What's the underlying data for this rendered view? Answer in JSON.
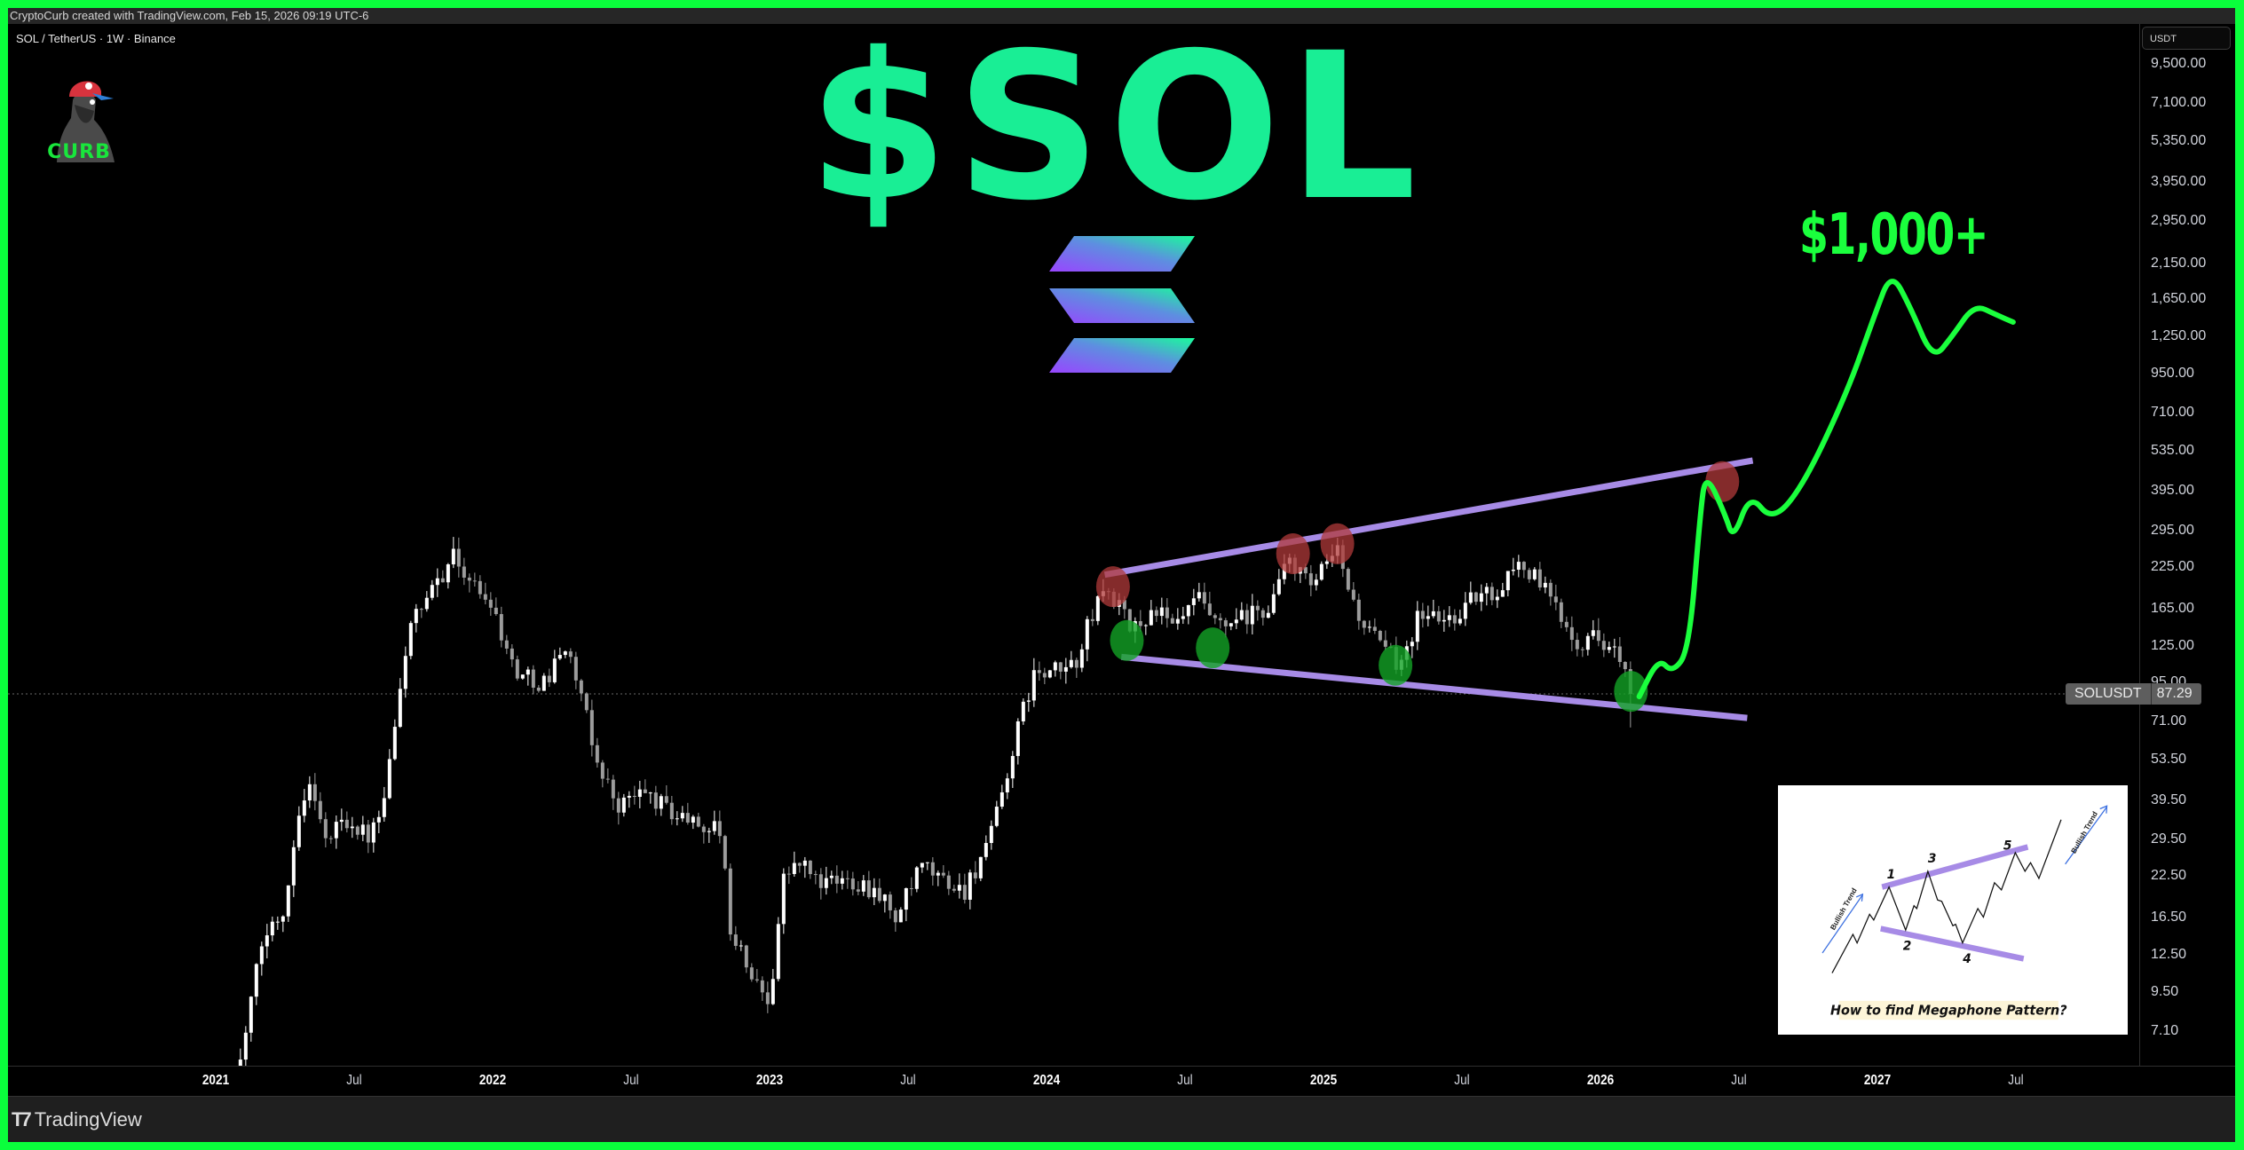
{
  "header": {
    "attribution": "CryptoCurb created with TradingView.com, Feb 15, 2026 09:19 UTC-6"
  },
  "symbol_info": "SOL / TetherUS · 1W · Binance",
  "logo": {
    "text": "CURB"
  },
  "title": "$SOL",
  "target_label": "$1,000+",
  "currency_button": "USDT",
  "price_tag": {
    "symbol": "SOLUSDT",
    "value": "87.29"
  },
  "footer": {
    "brand": "TradingView"
  },
  "inset": {
    "caption": "How to find Megaphone Pattern?",
    "wave_labels": [
      "1",
      "2",
      "3",
      "4",
      "5"
    ],
    "trend_label": "Bullish Trend"
  },
  "colors": {
    "border": "#0aff3c",
    "title": "#19ee95",
    "up_candle": "#ffffff",
    "down_candle": "#9c9c9c",
    "trendline": "#a78be6",
    "projection": "#1aff3d",
    "resistance_marker": "#b03a3a",
    "support_marker": "#13a326",
    "solana_gradient": [
      "#9945ff",
      "#19fb9b"
    ]
  },
  "chart_data": {
    "type": "candlestick",
    "interval": "1W",
    "y_scale": "log",
    "grid": false,
    "y_ticks": [
      "9,500.00",
      "7,100.00",
      "5,350.00",
      "3,950.00",
      "2,950.00",
      "2,150.00",
      "1,650.00",
      "1,250.00",
      "950.00",
      "710.00",
      "535.00",
      "395.00",
      "295.00",
      "225.00",
      "165.00",
      "125.00",
      "95.00",
      "71.00",
      "53.50",
      "39.50",
      "29.50",
      "22.50",
      "16.50",
      "12.50",
      "9.50",
      "7.10"
    ],
    "x_ticks": [
      {
        "label": "2021",
        "date": 2021.0,
        "year": true
      },
      {
        "label": "Jul",
        "date": 2021.5,
        "year": false
      },
      {
        "label": "2022",
        "date": 2022.0,
        "year": true
      },
      {
        "label": "Jul",
        "date": 2022.5,
        "year": false
      },
      {
        "label": "2023",
        "date": 2023.0,
        "year": true
      },
      {
        "label": "Jul",
        "date": 2023.5,
        "year": false
      },
      {
        "label": "2024",
        "date": 2024.0,
        "year": true
      },
      {
        "label": "Jul",
        "date": 2024.5,
        "year": false
      },
      {
        "label": "2025",
        "date": 2025.0,
        "year": true
      },
      {
        "label": "Jul",
        "date": 2025.5,
        "year": false
      },
      {
        "label": "2026",
        "date": 2026.0,
        "year": true
      },
      {
        "label": "Jul",
        "date": 2026.5,
        "year": false
      },
      {
        "label": "2027",
        "date": 2027.0,
        "year": true
      },
      {
        "label": "Jul",
        "date": 2027.5,
        "year": false
      }
    ],
    "current_price": 87.29,
    "approx_close_path": [
      [
        2021.07,
        4.5
      ],
      [
        2021.13,
        9
      ],
      [
        2021.17,
        14
      ],
      [
        2021.25,
        18
      ],
      [
        2021.3,
        38
      ],
      [
        2021.35,
        45
      ],
      [
        2021.4,
        28
      ],
      [
        2021.45,
        35
      ],
      [
        2021.5,
        33
      ],
      [
        2021.55,
        30
      ],
      [
        2021.6,
        35
      ],
      [
        2021.65,
        70
      ],
      [
        2021.7,
        150
      ],
      [
        2021.75,
        160
      ],
      [
        2021.8,
        200
      ],
      [
        2021.85,
        245
      ],
      [
        2021.88,
        230
      ],
      [
        2021.95,
        185
      ],
      [
        2022.0,
        175
      ],
      [
        2022.05,
        120
      ],
      [
        2022.1,
        100
      ],
      [
        2022.2,
        95
      ],
      [
        2022.25,
        130
      ],
      [
        2022.3,
        100
      ],
      [
        2022.37,
        55
      ],
      [
        2022.45,
        38
      ],
      [
        2022.55,
        42
      ],
      [
        2022.65,
        36
      ],
      [
        2022.75,
        33
      ],
      [
        2022.82,
        32
      ],
      [
        2022.86,
        15
      ],
      [
        2022.95,
        10
      ],
      [
        2023.0,
        9
      ],
      [
        2023.05,
        22
      ],
      [
        2023.1,
        25
      ],
      [
        2023.2,
        21
      ],
      [
        2023.3,
        22
      ],
      [
        2023.4,
        20
      ],
      [
        2023.45,
        16
      ],
      [
        2023.55,
        24
      ],
      [
        2023.62,
        22
      ],
      [
        2023.7,
        20
      ],
      [
        2023.8,
        30
      ],
      [
        2023.88,
        58
      ],
      [
        2023.95,
        100
      ],
      [
        2024.0,
        100
      ],
      [
        2024.1,
        108
      ],
      [
        2024.2,
        190
      ],
      [
        2024.25,
        175
      ],
      [
        2024.3,
        140
      ],
      [
        2024.4,
        165
      ],
      [
        2024.45,
        140
      ],
      [
        2024.55,
        175
      ],
      [
        2024.62,
        140
      ],
      [
        2024.7,
        150
      ],
      [
        2024.8,
        165
      ],
      [
        2024.88,
        240
      ],
      [
        2024.95,
        190
      ],
      [
        2025.05,
        250
      ],
      [
        2025.12,
        160
      ],
      [
        2025.2,
        125
      ],
      [
        2025.27,
        110
      ],
      [
        2025.35,
        160
      ],
      [
        2025.45,
        150
      ],
      [
        2025.55,
        180
      ],
      [
        2025.62,
        185
      ],
      [
        2025.7,
        235
      ],
      [
        2025.78,
        200
      ],
      [
        2025.85,
        160
      ],
      [
        2025.92,
        130
      ],
      [
        2026.0,
        135
      ],
      [
        2026.05,
        120
      ],
      [
        2026.12,
        87.29
      ]
    ],
    "annotations": {
      "upper_trendline": [
        [
          2024.21,
          212
        ],
        [
          2026.55,
          496
        ]
      ],
      "lower_trendline": [
        [
          2024.27,
          115
        ],
        [
          2026.53,
          73
        ]
      ],
      "resistance_touches": [
        [
          2024.24,
          194
        ],
        [
          2024.89,
          248
        ],
        [
          2025.05,
          267
        ],
        [
          2026.44,
          424
        ]
      ],
      "support_touches": [
        [
          2024.29,
          130
        ],
        [
          2024.6,
          123
        ],
        [
          2025.26,
          108
        ],
        [
          2026.11,
          89
        ]
      ],
      "projection_path": [
        [
          2026.14,
          85.6
        ],
        [
          2026.21,
          114
        ],
        [
          2026.26,
          102
        ],
        [
          2026.32,
          121
        ],
        [
          2026.36,
          332
        ],
        [
          2026.38,
          455
        ],
        [
          2026.45,
          332
        ],
        [
          2026.48,
          275
        ],
        [
          2026.54,
          388
        ],
        [
          2026.62,
          315
        ],
        [
          2026.73,
          408
        ],
        [
          2026.89,
          819
        ],
        [
          2026.99,
          1466
        ],
        [
          2027.05,
          2025
        ],
        [
          2027.12,
          1547
        ],
        [
          2027.2,
          1047
        ],
        [
          2027.27,
          1250
        ],
        [
          2027.35,
          1586
        ],
        [
          2027.43,
          1466
        ],
        [
          2027.49,
          1390
        ]
      ]
    }
  }
}
